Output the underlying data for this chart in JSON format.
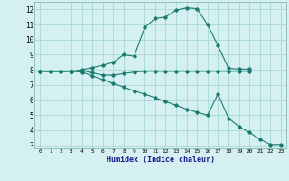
{
  "line1_x": [
    0,
    1,
    2,
    3,
    4,
    5,
    6,
    7,
    8,
    9,
    10,
    11,
    12,
    13,
    14,
    15,
    16,
    17,
    18,
    19,
    20
  ],
  "line1_y": [
    7.9,
    7.9,
    7.9,
    7.9,
    8.0,
    8.15,
    8.3,
    8.5,
    9.0,
    8.9,
    10.8,
    11.4,
    11.5,
    11.95,
    12.1,
    12.05,
    11.0,
    9.6,
    8.1,
    8.05,
    8.05
  ],
  "line2_x": [
    0,
    1,
    2,
    3,
    4,
    5,
    6,
    7,
    8,
    9,
    10,
    11,
    12,
    13,
    14,
    15,
    16,
    17,
    18,
    19,
    20
  ],
  "line2_y": [
    7.9,
    7.9,
    7.9,
    7.9,
    7.95,
    7.8,
    7.65,
    7.65,
    7.75,
    7.85,
    7.9,
    7.9,
    7.9,
    7.9,
    7.9,
    7.9,
    7.9,
    7.9,
    7.9,
    7.9,
    7.9
  ],
  "line3_x": [
    0,
    1,
    2,
    3,
    4,
    5,
    6,
    7,
    8,
    9,
    10,
    11,
    12,
    13,
    14,
    15,
    16,
    17,
    18,
    19,
    20,
    21,
    22,
    23
  ],
  "line3_y": [
    7.9,
    7.9,
    7.9,
    7.9,
    7.85,
    7.6,
    7.35,
    7.1,
    6.85,
    6.6,
    6.4,
    6.15,
    5.9,
    5.65,
    5.4,
    5.2,
    5.0,
    6.4,
    4.8,
    4.25,
    3.85,
    3.4,
    3.05,
    3.05
  ],
  "line_color": "#1a7a6e",
  "bg_color": "#d4f0f0",
  "grid_color": "#aad8d8",
  "xlabel": "Humidex (Indice chaleur)",
  "ylim": [
    2.8,
    12.5
  ],
  "xlim": [
    -0.5,
    23.5
  ],
  "yticks": [
    3,
    4,
    5,
    6,
    7,
    8,
    9,
    10,
    11,
    12
  ],
  "xticks": [
    0,
    1,
    2,
    3,
    4,
    5,
    6,
    7,
    8,
    9,
    10,
    11,
    12,
    13,
    14,
    15,
    16,
    17,
    18,
    19,
    20,
    21,
    22,
    23
  ]
}
